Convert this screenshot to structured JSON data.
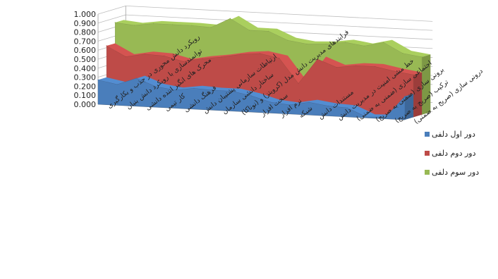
{
  "chart_data": {
    "type": "area",
    "title": "",
    "xlabel": "",
    "ylabel": "",
    "ylim": [
      0,
      1
    ],
    "ytick_labels": [
      "0.000",
      "0.100",
      "0.200",
      "0.300",
      "0.400",
      "0.500",
      "0.600",
      "0.700",
      "0.800",
      "0.900",
      "1.000"
    ],
    "grid": true,
    "legend_position": "right",
    "categories": [
      "رویکرد دانش محوری در جذب و بکارگیری",
      "توانمندسازی با رویکرد دانش بنیان",
      "محرک های انگیز اننده دانشی",
      "کار تیمی",
      "فرهنگ دانشی",
      "ارتباطات سازمانی پشتیبان دانش",
      "ساختار دانشی سازمان",
      "فرایندهای مدیریت دانش مدل (کرویتز) و (نوناکا)",
      "سخت افزار",
      "نرم افزار",
      "شبکه",
      "مستندات دانش",
      "خط مشی امنیت در مدیریت دانش",
      "اجتماعی سازی (ضمنی به ضمنی)",
      "برونی سازی (ضمنی به صریح)",
      "ترکیب (صریح به صریح)",
      "درونی سازی (صریح به ضمنی)"
    ],
    "series": [
      {
        "name": "دور اول دلفی",
        "color": "#4a7ebb",
        "values": [
          0.27,
          0.23,
          0.31,
          0.23,
          0.2,
          0.23,
          0.22,
          0.22,
          0.18,
          0.12,
          0.1,
          0.14,
          0.11,
          0.1,
          0.01,
          0.02,
          0.26
        ]
      },
      {
        "name": "دور دوم دلفی",
        "color": "#be4b48",
        "values": [
          0.62,
          0.51,
          0.55,
          0.54,
          0.49,
          0.53,
          0.56,
          0.6,
          0.62,
          0.58,
          0.31,
          0.59,
          0.51,
          0.54,
          0.54,
          0.5,
          0.47
        ]
      },
      {
        "name": "دور سوم دلفی",
        "color": "#98b954",
        "values": [
          0.85,
          0.83,
          0.86,
          0.86,
          0.86,
          0.85,
          0.96,
          0.84,
          0.84,
          0.75,
          0.72,
          0.73,
          0.76,
          0.73,
          0.78,
          0.67,
          0.64
        ]
      }
    ]
  }
}
